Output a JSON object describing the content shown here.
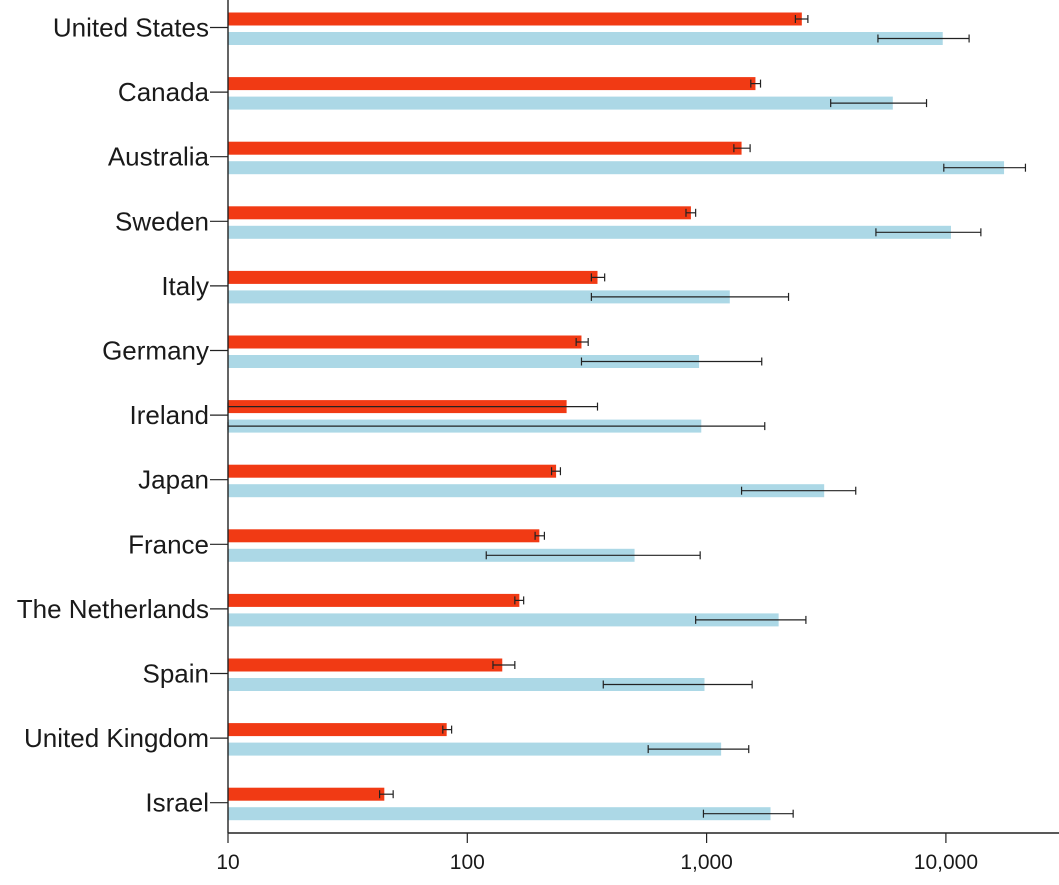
{
  "chart_data": {
    "type": "bar",
    "orientation": "horizontal",
    "x_scale": "log",
    "xlim": [
      10,
      30000
    ],
    "x_ticks": [
      10,
      100,
      1000,
      10000
    ],
    "x_tick_labels": [
      "10",
      "100",
      "1,000",
      "10,000"
    ],
    "grid": false,
    "legend": "none",
    "colors": {
      "series_a": "#f13a14",
      "series_b": "#acd8e6",
      "axis": "#222222"
    },
    "categories": [
      "United States",
      "Canada",
      "Australia",
      "Sweden",
      "Italy",
      "Germany",
      "Ireland",
      "Japan",
      "France",
      "The Netherlands",
      "Spain",
      "United Kingdom",
      "Israel"
    ],
    "series": [
      {
        "values": [
          2500,
          1600,
          1400,
          860,
          350,
          300,
          260,
          235,
          200,
          165,
          140,
          82,
          45
        ],
        "error_low": [
          2350,
          1530,
          1300,
          820,
          330,
          285,
          10,
          225,
          192,
          158,
          128,
          79,
          43
        ],
        "error_high": [
          2650,
          1680,
          1520,
          900,
          375,
          320,
          350,
          245,
          210,
          172,
          158,
          86,
          49
        ]
      },
      {
        "values": [
          9700,
          6000,
          17500,
          10500,
          1250,
          930,
          950,
          3100,
          500,
          2000,
          980,
          1150,
          1850
        ],
        "error_low": [
          5200,
          3300,
          9800,
          5100,
          330,
          300,
          10,
          1400,
          120,
          900,
          370,
          570,
          970
        ],
        "error_high": [
          12500,
          8300,
          21500,
          14000,
          2200,
          1700,
          1750,
          4200,
          940,
          2600,
          1550,
          1500,
          2300
        ]
      }
    ]
  }
}
